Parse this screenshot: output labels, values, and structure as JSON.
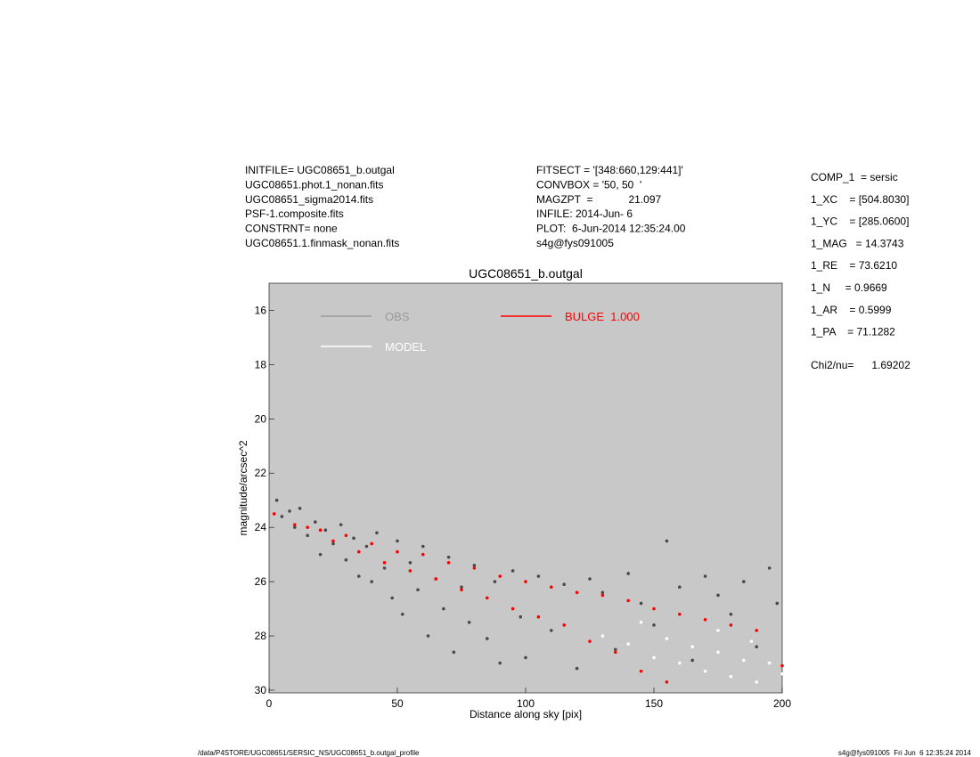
{
  "header": {
    "left": [
      "INITFILE= UGC08651_b.outgal",
      "UGC08651.phot.1_nonan.fits",
      "UGC08651_sigma2014.fits",
      "PSF-1.composite.fits",
      "CONSTRNT= none",
      "UGC08651.1.finmask_nonan.fits"
    ],
    "middle": [
      "FITSECT = '[348:660,129:441]'",
      "CONVBOX = '50, 50  '",
      "MAGZPT  =            21.097",
      "INFILE: 2014-Jun- 6",
      "PLOT:  6-Jun-2014 12:35:24.00",
      "s4g@fys091005"
    ],
    "right": [
      "COMP_1  = sersic",
      "1_XC    = [504.8030]",
      "1_YC    = [285.0600]",
      "1_MAG   = 14.3743",
      "1_RE    = 73.6210",
      "1_N     = 0.9669",
      "1_AR    = 0.5999",
      "1_PA    = 71.1282"
    ],
    "chi2": "Chi2/nu=      1.69202"
  },
  "footer": {
    "left": "/data/P4STORE/UGC08651/SERSIC_NS/UGC08651_b.outgal_profile",
    "right": "s4g@fys091005  Fri Jun  6 12:35:24 2014"
  },
  "chart_data": {
    "type": "scatter",
    "title": "UGC08651_b.outgal",
    "x_label": "Distance along sky [pix]",
    "y_label": "magnitude/arcsec^2",
    "xlim": [
      0,
      200
    ],
    "xticks": [
      0,
      50,
      100,
      150,
      200
    ],
    "ylim": [
      30.1,
      15
    ],
    "yticks": [
      16,
      18,
      20,
      22,
      24,
      26,
      28,
      30
    ],
    "background": "#c8c8c8",
    "series": [
      {
        "name": "OBS",
        "color": "#4a4a4a",
        "legend_color": "#9a9a9a",
        "x": [
          3,
          5,
          8,
          10,
          12,
          15,
          18,
          20,
          22,
          25,
          28,
          30,
          33,
          35,
          38,
          40,
          42,
          45,
          48,
          50,
          52,
          55,
          58,
          60,
          62,
          65,
          68,
          70,
          72,
          75,
          78,
          80,
          85,
          88,
          90,
          95,
          98,
          100,
          105,
          110,
          115,
          120,
          125,
          130,
          135,
          140,
          145,
          150,
          155,
          160,
          165,
          170,
          175,
          180,
          185,
          190,
          195,
          198
        ],
        "values": [
          23.0,
          23.6,
          23.4,
          24.0,
          23.3,
          24.3,
          23.8,
          25.0,
          24.1,
          24.6,
          23.9,
          25.2,
          24.4,
          25.8,
          24.7,
          26.0,
          24.2,
          25.5,
          26.6,
          24.5,
          27.2,
          25.3,
          26.3,
          24.7,
          28.0,
          25.9,
          27.0,
          25.1,
          28.6,
          26.2,
          27.5,
          25.4,
          28.1,
          26.0,
          29.0,
          25.6,
          27.3,
          28.8,
          25.8,
          27.8,
          26.1,
          29.2,
          25.9,
          26.4,
          28.5,
          25.7,
          26.8,
          27.6,
          24.5,
          26.2,
          28.9,
          25.8,
          26.5,
          27.2,
          26.0,
          28.4,
          25.5,
          26.8
        ]
      },
      {
        "name": "MODEL",
        "color": "#ffffff",
        "legend_color": "#ffffff",
        "x": [
          130,
          140,
          145,
          150,
          155,
          160,
          165,
          170,
          175,
          180,
          185,
          190,
          195,
          200,
          175,
          188
        ],
        "values": [
          28.0,
          28.3,
          27.5,
          28.8,
          28.1,
          29.0,
          28.4,
          29.3,
          28.6,
          29.5,
          28.9,
          29.7,
          29.0,
          29.4,
          27.8,
          28.2
        ]
      },
      {
        "name": "BULGE  1.000",
        "color": "#ff0000",
        "legend_color": "#ff0000",
        "x": [
          2,
          10,
          15,
          20,
          25,
          30,
          35,
          40,
          45,
          50,
          55,
          60,
          65,
          70,
          75,
          80,
          85,
          90,
          95,
          100,
          105,
          110,
          115,
          120,
          125,
          130,
          135,
          140,
          145,
          150,
          155,
          160,
          170,
          180,
          190,
          200
        ],
        "values": [
          23.5,
          23.9,
          24.0,
          24.1,
          24.5,
          24.3,
          24.9,
          24.6,
          25.3,
          24.9,
          25.6,
          25.0,
          25.9,
          25.3,
          26.3,
          25.5,
          26.6,
          25.8,
          27.0,
          26.0,
          27.3,
          26.2,
          27.6,
          26.4,
          28.2,
          26.5,
          28.6,
          26.7,
          29.3,
          27.0,
          29.7,
          27.2,
          27.4,
          27.6,
          27.8,
          29.1
        ]
      }
    ]
  }
}
